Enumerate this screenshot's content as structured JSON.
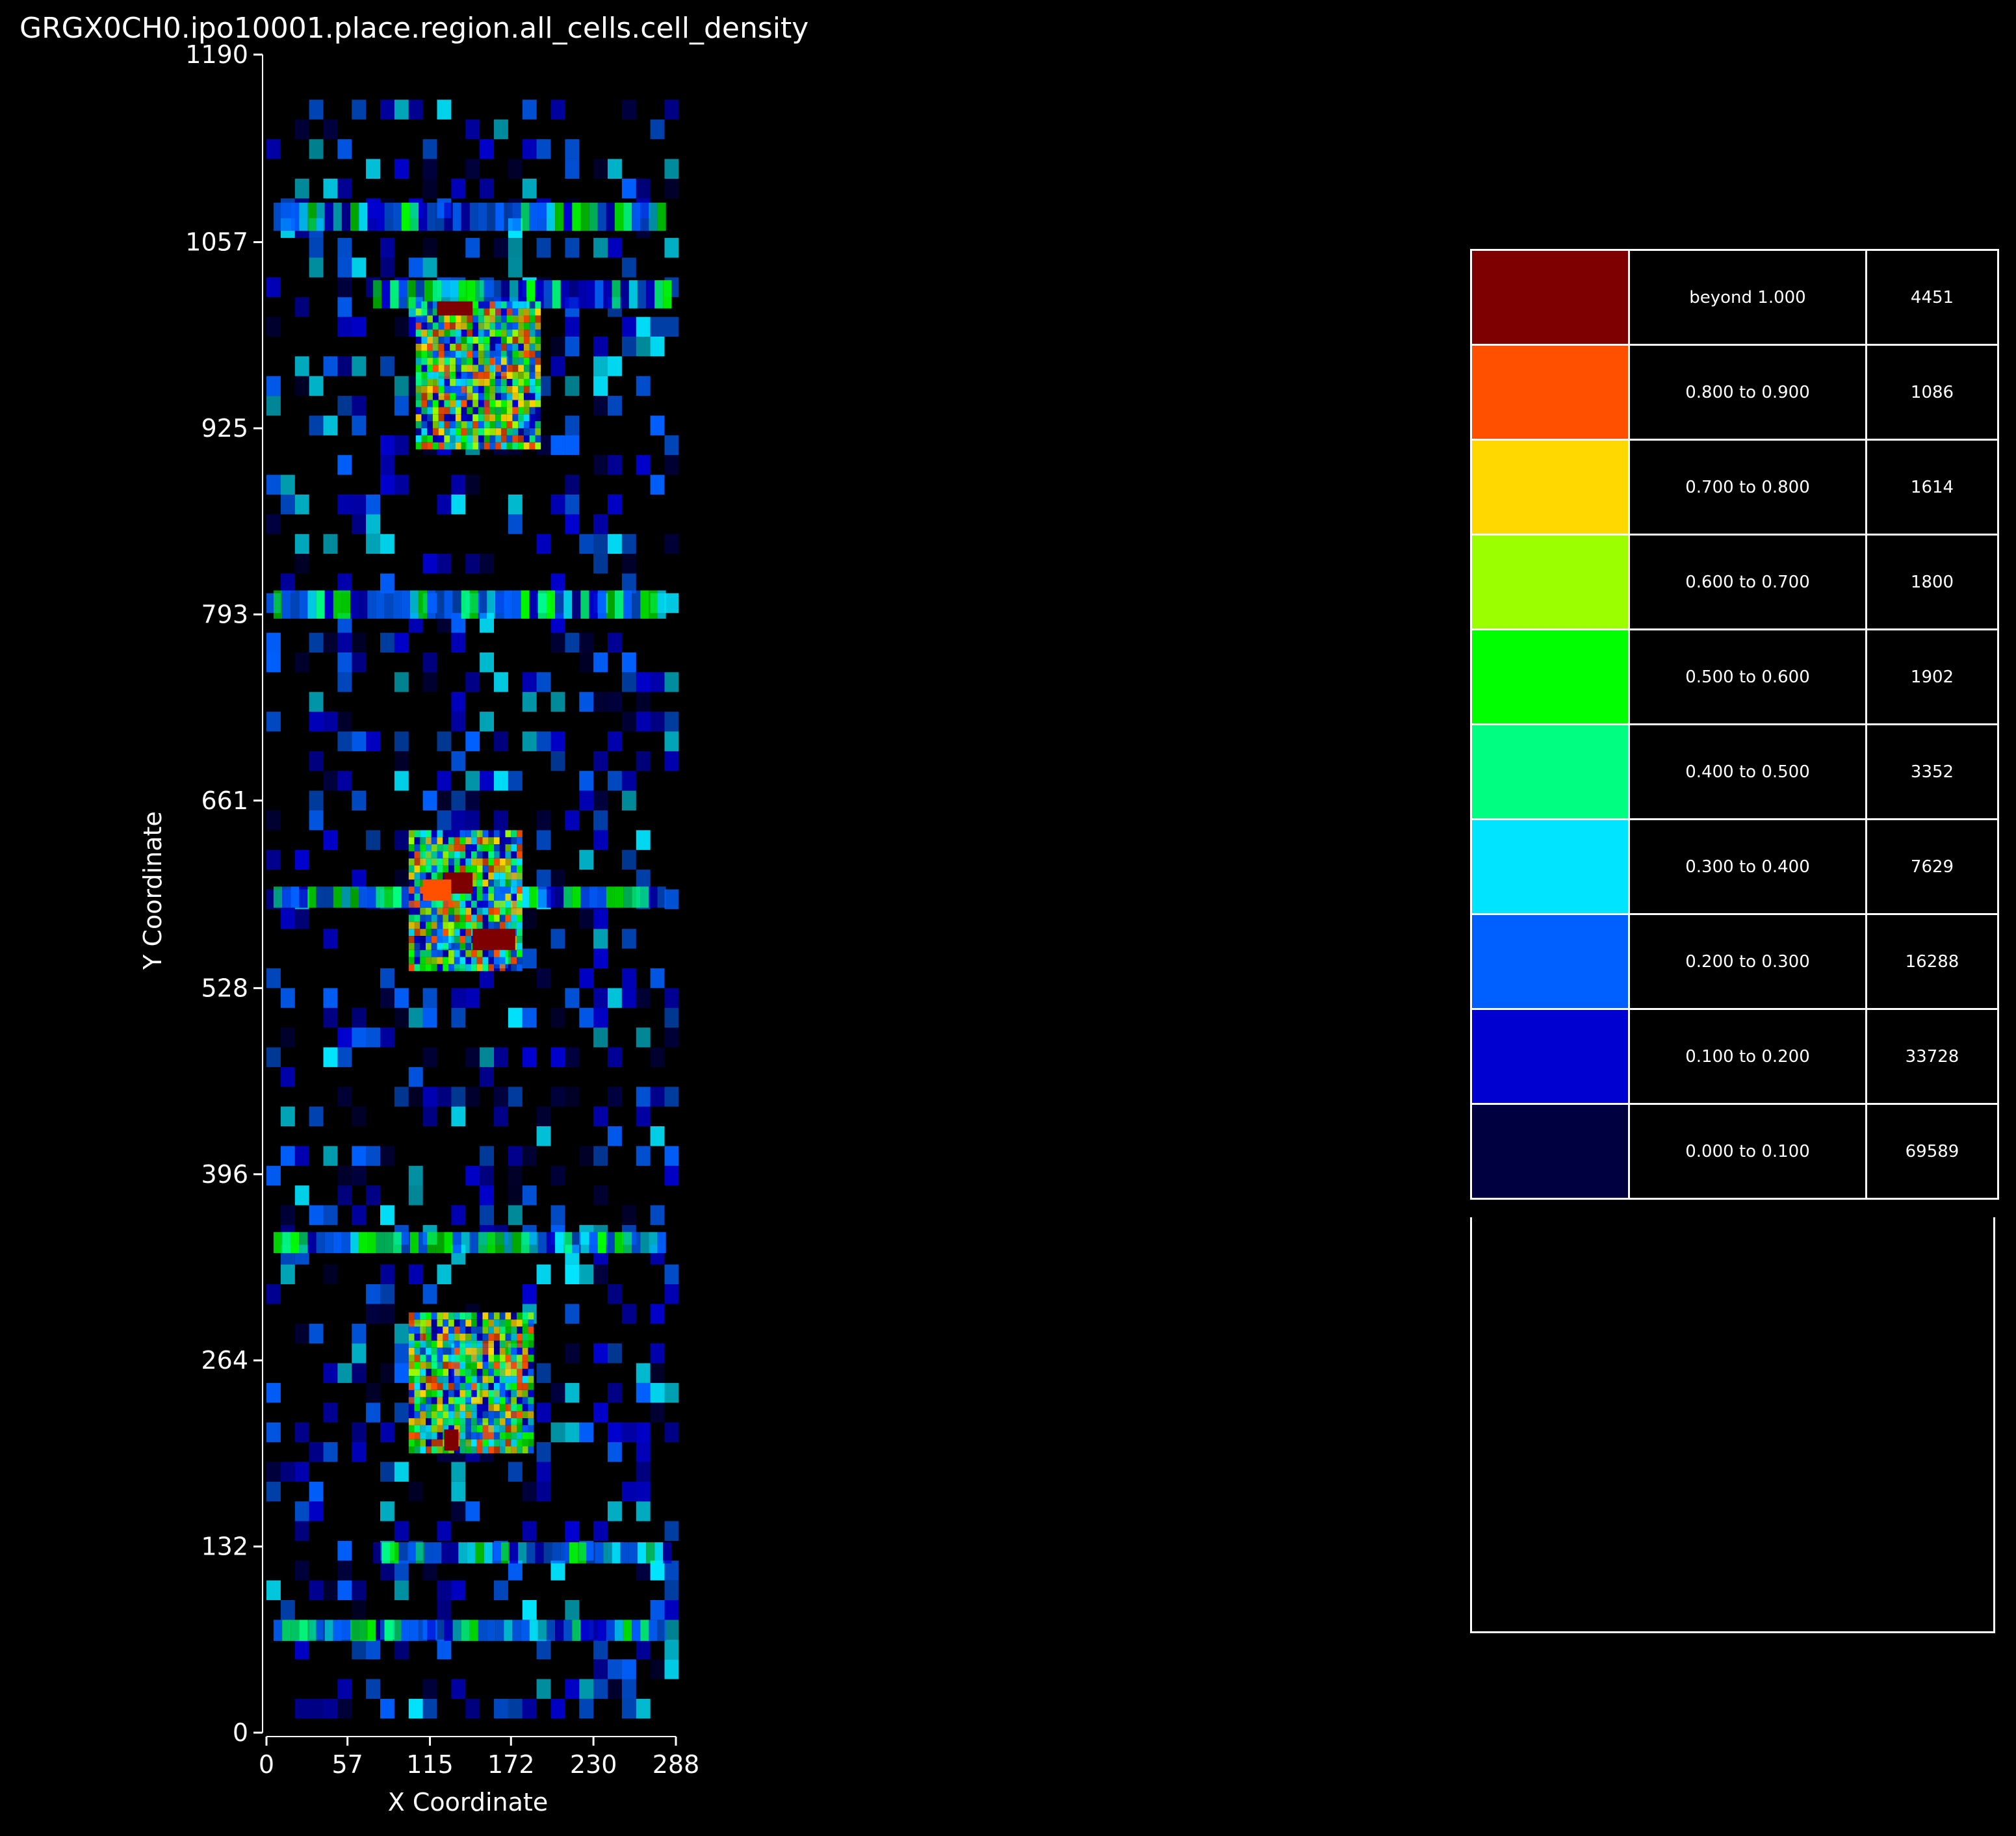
{
  "chart_data": {
    "type": "heatmap",
    "title": "GRGX0CH0.ipo10001.place.region.all_cells.cell_density",
    "xlabel": "X Coordinate",
    "ylabel": "Y Coordinate",
    "xlim": [
      0,
      288
    ],
    "ylim": [
      0,
      1190
    ],
    "x_ticks": [
      "0",
      "57",
      "115",
      "172",
      "230",
      "288"
    ],
    "x_tick_values": [
      0,
      57,
      115,
      172,
      230,
      288
    ],
    "y_ticks": [
      "0",
      "132",
      "264",
      "396",
      "528",
      "661",
      "793",
      "925",
      "1057",
      "1190"
    ],
    "y_tick_values": [
      0,
      132,
      264,
      396,
      528,
      661,
      793,
      925,
      1057,
      1190
    ],
    "background": "#000000",
    "legend_placement": "right",
    "legend": [
      {
        "range": "beyond 1.000",
        "count": "4451",
        "color": "#7f0000"
      },
      {
        "range": "0.800 to 0.900",
        "count": "1086",
        "color": "#ff5000"
      },
      {
        "range": "0.700 to 0.800",
        "count": "1614",
        "color": "#ffd800"
      },
      {
        "range": "0.600 to 0.700",
        "count": "1800",
        "color": "#9cff00"
      },
      {
        "range": "0.500 to 0.600",
        "count": "1902",
        "color": "#00ff00"
      },
      {
        "range": "0.400 to 0.500",
        "count": "3352",
        "color": "#00ff80"
      },
      {
        "range": "0.300 to 0.400",
        "count": "7629",
        "color": "#00e4ff"
      },
      {
        "range": "0.200 to 0.300",
        "count": "16288",
        "color": "#0060ff"
      },
      {
        "range": "0.100 to 0.200",
        "count": "33728",
        "color": "#0000d0"
      },
      {
        "range": "0.000 to 0.100",
        "count": "69589",
        "color": "#000040"
      }
    ],
    "dense_blocks": [
      {
        "x": [
          105,
          193
        ],
        "y": [
          910,
          1015
        ],
        "level": "mixed-high"
      },
      {
        "x": [
          100,
          180
        ],
        "y": [
          540,
          640
        ],
        "level": "mixed-high"
      },
      {
        "x": [
          100,
          185
        ],
        "y": [
          198,
          298
        ],
        "level": "mixed-high"
      }
    ],
    "hot_spots": [
      {
        "x": [
          120,
          145
        ],
        "y": [
          1005,
          1015
        ],
        "color": "#7f0000"
      },
      {
        "x": [
          145,
          175
        ],
        "y": [
          555,
          570
        ],
        "color": "#7f0000"
      },
      {
        "x": [
          125,
          145
        ],
        "y": [
          595,
          610
        ],
        "color": "#7f0000"
      },
      {
        "x": [
          125,
          135
        ],
        "y": [
          200,
          215
        ],
        "color": "#7f0000"
      },
      {
        "x": [
          110,
          130
        ],
        "y": [
          590,
          605
        ],
        "color": "#ff5000"
      }
    ],
    "bands": [
      {
        "x": [
          5,
          280
        ],
        "y": [
          1065,
          1085
        ]
      },
      {
        "x": [
          75,
          280
        ],
        "y": [
          1010,
          1030
        ]
      },
      {
        "x": [
          5,
          280
        ],
        "y": [
          790,
          810
        ]
      },
      {
        "x": [
          5,
          280
        ],
        "y": [
          585,
          600
        ]
      },
      {
        "x": [
          5,
          280
        ],
        "y": [
          340,
          355
        ]
      },
      {
        "x": [
          75,
          280
        ],
        "y": [
          120,
          135
        ]
      },
      {
        "x": [
          5,
          280
        ],
        "y": [
          65,
          80
        ]
      }
    ]
  }
}
